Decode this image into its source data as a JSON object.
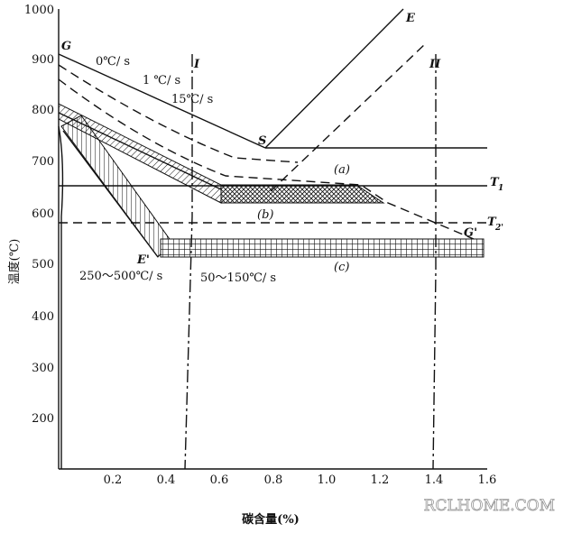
{
  "axes": {
    "y_label": "温度(℃)",
    "x_label": "碳含量(%)",
    "y_ticks": [
      "1000",
      "900",
      "800",
      "700",
      "600",
      "500",
      "400",
      "300",
      "200"
    ],
    "x_ticks": [
      "0.2",
      "0.4",
      "0.6",
      "0.8",
      "1.0",
      "1.2",
      "1.4",
      "1.6"
    ]
  },
  "points": {
    "G": "G",
    "S": "S",
    "E": "E",
    "G2": "G'",
    "E2": "E'",
    "I": "I",
    "II": "II",
    "T1": "T",
    "T1_sub": "1",
    "T2": "T",
    "T2_sub": "2'"
  },
  "rates": {
    "r0": "0℃/ s",
    "r1": "1 ℃/ s",
    "r15": "15℃/ s",
    "r250": "250～500℃/ s",
    "r50": "50～150℃/ s"
  },
  "regions": {
    "a": "(a)",
    "b": "(b)",
    "c": "(c)"
  },
  "watermark": "RCLHOME.COM"
}
